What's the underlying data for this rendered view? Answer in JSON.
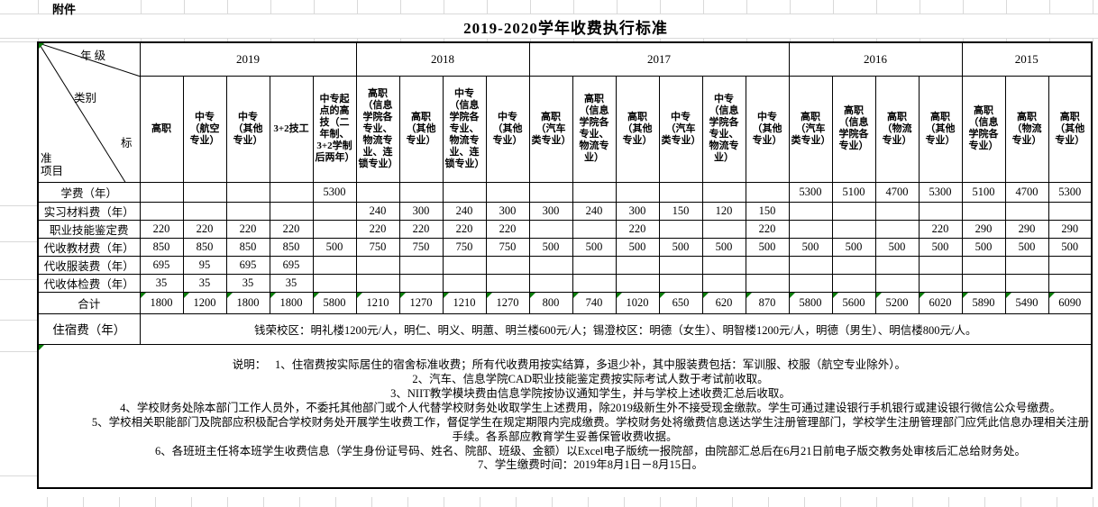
{
  "sheet": {
    "attachment_label": "附件",
    "title": "2019-2020学年收费执行标准"
  },
  "corner": {
    "year_label": "年 级",
    "category_label": "类别",
    "standard_char_1": "标",
    "standard_char_2": "准",
    "item_label": "项目"
  },
  "year_groups": [
    {
      "year": "2019",
      "columns": [
        "高职",
        "中专（航空专业）",
        "中专（其他专业）",
        "3+2技工",
        "中专起点的高技（二年制、3+2学制后两年）"
      ]
    },
    {
      "year": "2018",
      "columns": [
        "高职（信息学院各专业、物流专业、连锁专业）",
        "高职（其他专业）",
        "中专（信息学院各专业、物流专业、连锁专业）",
        "中专（其他专业）"
      ]
    },
    {
      "year": "2017",
      "columns": [
        "高职（汽车类专业）",
        "高职（信息学院各专业、物流专业）",
        "高职（其他专业）",
        "中专（汽车类专业）",
        "中专（信息学院各专业、物流专业）",
        "中专（其他专业）"
      ]
    },
    {
      "year": "2016",
      "columns": [
        "高职（汽车类专业）",
        "高职（信息学院各专业）",
        "高职（物流专业）",
        "高职（其他专业）"
      ]
    },
    {
      "year": "2015",
      "columns": [
        "高职（信息学院各专业）",
        "高职（物流专业）",
        "高职（其他专业）"
      ]
    }
  ],
  "fee_rows": [
    {
      "label": "学费（年）",
      "values": [
        "",
        "",
        "",
        "",
        "5300",
        "",
        "",
        "",
        "",
        "",
        "",
        "",
        "",
        "",
        "",
        "5300",
        "5100",
        "4700",
        "5300",
        "5100",
        "4700",
        "5300"
      ]
    },
    {
      "label": "实习材料费（年）",
      "values": [
        "",
        "",
        "",
        "",
        "",
        "240",
        "300",
        "240",
        "300",
        "300",
        "240",
        "300",
        "150",
        "120",
        "150",
        "",
        "",
        "",
        "",
        "",
        "",
        ""
      ]
    },
    {
      "label": "职业技能鉴定费",
      "values": [
        "220",
        "220",
        "220",
        "220",
        "",
        "220",
        "220",
        "220",
        "220",
        "",
        "",
        "220",
        "",
        "",
        "220",
        "",
        "",
        "",
        "220",
        "290",
        "290",
        "290"
      ]
    },
    {
      "label": "代收教材费（年）",
      "values": [
        "850",
        "850",
        "850",
        "850",
        "500",
        "750",
        "750",
        "750",
        "750",
        "500",
        "500",
        "500",
        "500",
        "500",
        "500",
        "500",
        "500",
        "500",
        "500",
        "500",
        "500",
        "500"
      ]
    },
    {
      "label": "代收服装费（年）",
      "values": [
        "695",
        "95",
        "695",
        "695",
        "",
        "",
        "",
        "",
        "",
        "",
        "",
        "",
        "",
        "",
        "",
        "",
        "",
        "",
        "",
        "",
        "",
        ""
      ]
    },
    {
      "label": "代收体检费（年）",
      "values": [
        "35",
        "35",
        "35",
        "35",
        "",
        "",
        "",
        "",
        "",
        "",
        "",
        "",
        "",
        "",
        "",
        "",
        "",
        "",
        "",
        "",
        "",
        ""
      ]
    }
  ],
  "total_row": {
    "label": "合计",
    "values": [
      "1800",
      "1200",
      "1800",
      "1800",
      "5800",
      "1210",
      "1270",
      "1210",
      "1270",
      "800",
      "740",
      "1020",
      "650",
      "620",
      "870",
      "5800",
      "5600",
      "5200",
      "6020",
      "5890",
      "5490",
      "6090"
    ]
  },
  "dorm_row": {
    "label": "住宿费（年）",
    "text": "钱荣校区：明礼楼1200元/人，明仁、明义、明蕙、明兰楼600元/人；锡澄校区：明德（女生）、明智楼1200元/人，明德（男生）、明信楼800元/人。"
  },
  "notes": {
    "label": "说明：",
    "lines": [
      "1、住宿费按实际居住的宿舍标准收费；所有代收费用按实结算，多退少补，其中服装费包括：军训服、校服（航空专业除外）。",
      "2、汽车、信息学院CAD职业技能鉴定费按实际考试人数于考试前收取。",
      "3、NIIT教学模块费由信息学院按协议通知学生，并与学校上述收费汇总后收取。",
      "4、学校财务处除本部门工作人员外，不委托其他部门或个人代替学校财务处收取学生上述费用，除2019级新生外不接受现金缴款。学生可通过建设银行手机银行或建设银行微信公众号缴费。",
      "5、学校相关职能部门及院部应积极配合学校财务处开展学生收费工作，督促学生在规定期限内完成缴费。学校财务处将缴费信息送达学生注册管理部门，学校学生注册管理部门应凭此信息办理相关注册手续。各系部应教育学生妥善保管收费收据。",
      "6、各班班主任将本班学生收费信息（学生身份证号码、姓名、院部、班级、金额）以Excel电子版统一报院部，由院部汇总后在6月21日前电子版交教务处审核后汇总给财务处。",
      "7、学生缴费时间：2019年8月1日－8月15日。"
    ]
  },
  "colors": {
    "border": "#000000",
    "gridline": "#d9d9d9",
    "error_indicator": "#0a7d0a"
  }
}
